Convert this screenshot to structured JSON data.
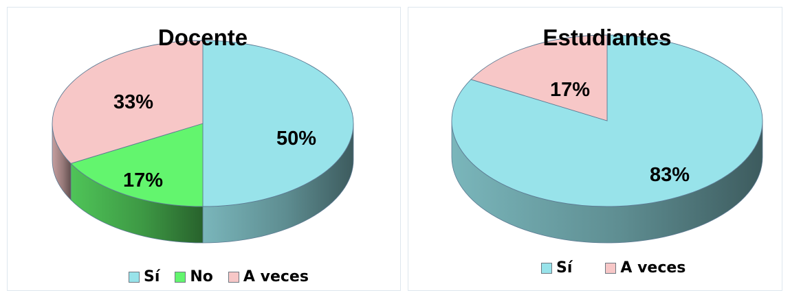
{
  "colors": {
    "si": "#98e3ea",
    "no": "#63f56e",
    "a_veces": "#f7c7c7",
    "outline": "#5c7a93"
  },
  "chart_data": [
    {
      "type": "pie",
      "title": "Docente",
      "slices": [
        {
          "label": "Sí",
          "value": 50,
          "display": "50%",
          "color_key": "si"
        },
        {
          "label": "No",
          "value": 17,
          "display": "17%",
          "color_key": "no"
        },
        {
          "label": "A veces",
          "value": 33,
          "display": "33%",
          "color_key": "a_veces"
        }
      ],
      "legend": [
        "Sí",
        "No",
        "A veces"
      ],
      "legend_position": "bottom"
    },
    {
      "type": "pie",
      "title": "Estudiantes",
      "slices": [
        {
          "label": "Sí",
          "value": 83,
          "display": "83%",
          "color_key": "si"
        },
        {
          "label": "A veces",
          "value": 17,
          "display": "17%",
          "color_key": "a_veces"
        }
      ],
      "legend": [
        "Sí",
        "A veces"
      ],
      "legend_position": "bottom"
    }
  ]
}
